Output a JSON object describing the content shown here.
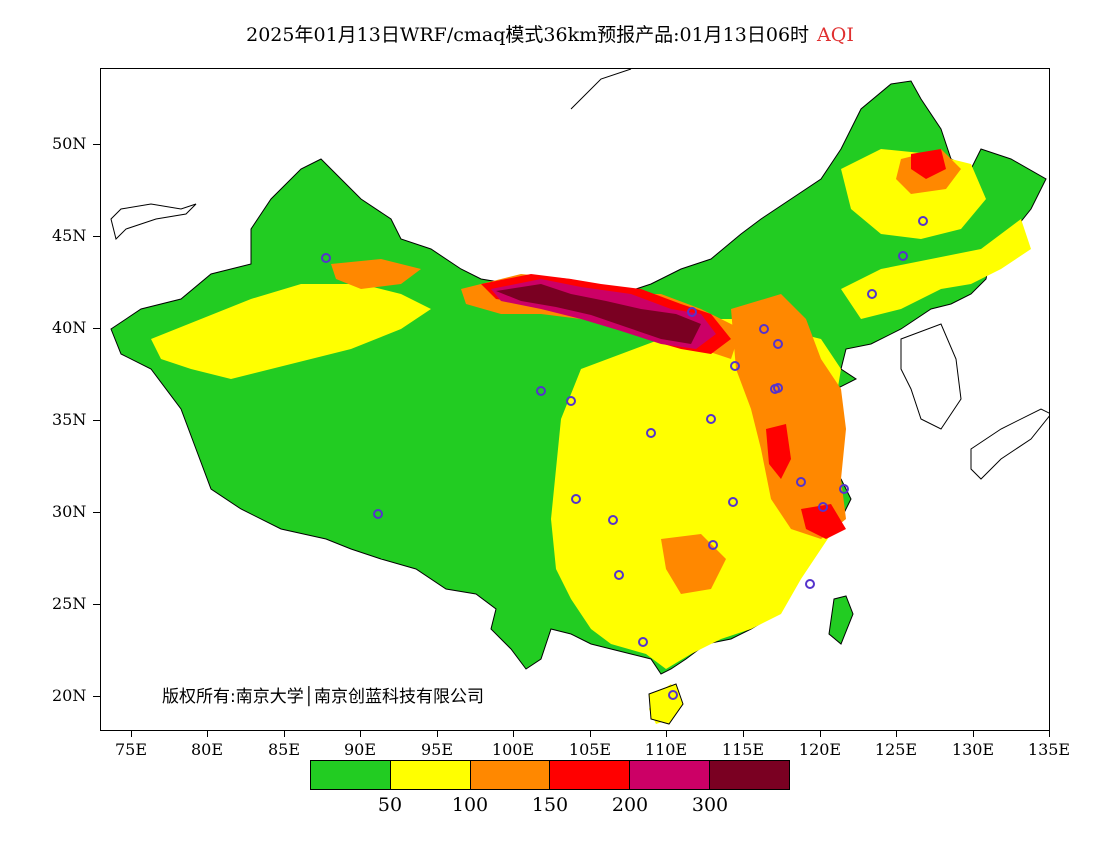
{
  "title": {
    "text": "2025年01月13日WRF/cmaq模式36km预报产品:01月13日06时",
    "variable": "AQI",
    "variable_color": "#e03030"
  },
  "copyright": "版权所有:南京大学│南京创蓝科技有限公司",
  "axes": {
    "lat_labels": [
      "50N",
      "45N",
      "40N",
      "35N",
      "30N",
      "25N",
      "20N"
    ],
    "lon_labels": [
      "75E",
      "80E",
      "85E",
      "90E",
      "95E",
      "100E",
      "105E",
      "110E",
      "115E",
      "120E",
      "125E",
      "130E",
      "135E"
    ]
  },
  "legend": {
    "colors": [
      "#22cc22",
      "#ffff00",
      "#ff8800",
      "#ff0000",
      "#cc0066",
      "#7a0022"
    ],
    "labels": [
      "50",
      "100",
      "150",
      "200",
      "300"
    ]
  },
  "map": {
    "land_fill": "#22cc22",
    "ocean_fill": "#ffffff",
    "outline_color": "#000000",
    "site_color": "#5533cc"
  }
}
